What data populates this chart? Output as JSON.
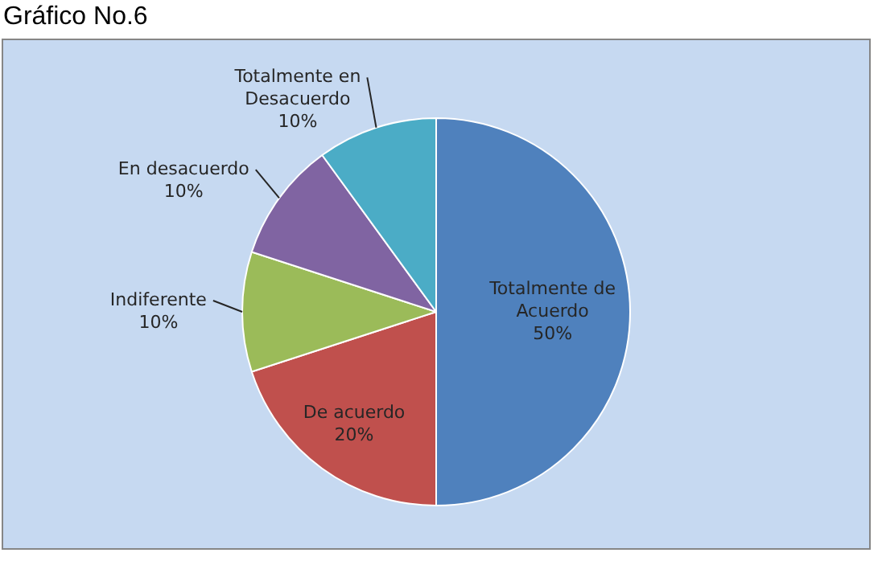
{
  "chart_data": {
    "type": "pie",
    "title": "Gráfico No.6",
    "categories": [
      "Totalmente de Acuerdo",
      "De acuerdo",
      "Indiferente",
      "En desacuerdo",
      "Totalmente en Desacuerdo"
    ],
    "values": [
      50,
      20,
      10,
      10,
      10
    ],
    "value_labels": [
      "50%",
      "20%",
      "10%",
      "10%",
      "10%"
    ],
    "colors": [
      "#4f81bd",
      "#c0504d",
      "#9bbb59",
      "#8064a2",
      "#4bacc6"
    ],
    "legend": false
  }
}
